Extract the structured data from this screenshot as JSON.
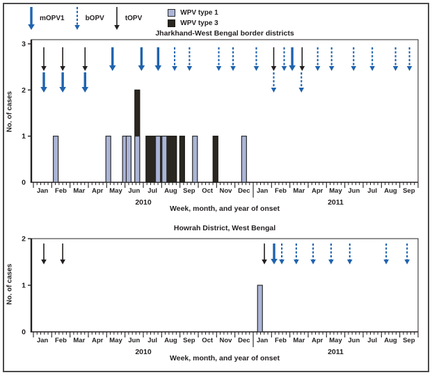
{
  "colors": {
    "ink": "#231F20",
    "figure_border": "#4A4A4A",
    "opv_blue": "#1F63AE",
    "wpv1_fill": "#ABB5D6",
    "wpv1_border": "#3A3A3A",
    "wpv3_fill": "#2A2620"
  },
  "legend": {
    "campaigns": [
      {
        "id": "mOPV1",
        "label": "mOPV1",
        "style": "solid-thick",
        "color": "#1F63AE"
      },
      {
        "id": "bOPV",
        "label": "bOPV",
        "style": "dashed",
        "color": "#1F63AE"
      },
      {
        "id": "tOPV",
        "label": "tOPV",
        "style": "solid-thin",
        "color": "#231F20"
      }
    ],
    "series": [
      {
        "id": "WPV1",
        "label": "WPV type 1",
        "fill": "#ABB5D6",
        "border": "#2B2B2B"
      },
      {
        "id": "WPV3",
        "label": "WPV type 3",
        "fill": "#2A2620",
        "border": "#1A1A16"
      }
    ]
  },
  "chart_data": [
    {
      "type": "bar",
      "title": "Jharkhand-West Bengal border districts",
      "ylabel": "No. of cases",
      "xlabel": "Week, month, and year of onset",
      "ylim": [
        0,
        3
      ],
      "yticks": [
        0,
        1,
        2,
        3
      ],
      "months": [
        "Jan",
        "Feb",
        "Mar",
        "Apr",
        "May",
        "Jun",
        "Jul",
        "Aug",
        "Sep",
        "Oct",
        "Nov",
        "Dec",
        "Jan",
        "Feb",
        "Mar",
        "Apr",
        "May",
        "Jun",
        "Jul",
        "Aug",
        "Sep"
      ],
      "years": [
        {
          "label": "2010",
          "start_month": 0,
          "end_month": 12
        },
        {
          "label": "2011",
          "start_month": 12,
          "end_month": 21
        }
      ],
      "bars": [
        {
          "month_x": 1.22,
          "cases": 1,
          "type": "WPV type 1"
        },
        {
          "month_x": 4.09,
          "cases": 1,
          "type": "WPV type 1"
        },
        {
          "month_x": 5.0,
          "cases": 1,
          "type": "WPV type 1"
        },
        {
          "month_x": 5.2,
          "cases": 1,
          "type": "WPV type 1"
        },
        {
          "month_x": 5.67,
          "cases": 2,
          "type": "WPV type 3"
        },
        {
          "month_x": 5.67,
          "cases": 1,
          "type": "WPV type 1"
        },
        {
          "month_x": 6.98,
          "cases": 1,
          "type": "WPV type 3",
          "width_months": 1.67
        },
        {
          "month_x": 6.8,
          "cases": 1,
          "type": "WPV type 1"
        },
        {
          "month_x": 7.15,
          "cases": 1,
          "type": "WPV type 1"
        },
        {
          "month_x": 8.12,
          "cases": 1,
          "type": "WPV type 3"
        },
        {
          "month_x": 8.82,
          "cases": 1,
          "type": "WPV type 1"
        },
        {
          "month_x": 9.94,
          "cases": 1,
          "type": "WPV type 3"
        },
        {
          "month_x": 11.5,
          "cases": 1,
          "type": "WPV type 1"
        }
      ],
      "campaign_arrows": [
        {
          "month_x": 0.57,
          "vaccine": "tOPV",
          "row": 1
        },
        {
          "month_x": 0.57,
          "vaccine": "mOPV1",
          "row": 2
        },
        {
          "month_x": 1.6,
          "vaccine": "tOPV",
          "row": 1
        },
        {
          "month_x": 1.6,
          "vaccine": "mOPV1",
          "row": 2
        },
        {
          "month_x": 2.82,
          "vaccine": "tOPV",
          "row": 1
        },
        {
          "month_x": 2.82,
          "vaccine": "mOPV1",
          "row": 2
        },
        {
          "month_x": 4.32,
          "vaccine": "mOPV1",
          "row": 1
        },
        {
          "month_x": 5.9,
          "vaccine": "mOPV1",
          "row": 1
        },
        {
          "month_x": 6.81,
          "vaccine": "mOPV1",
          "row": 1
        },
        {
          "month_x": 7.71,
          "vaccine": "bOPV",
          "row": 1
        },
        {
          "month_x": 8.52,
          "vaccine": "bOPV",
          "row": 1
        },
        {
          "month_x": 10.12,
          "vaccine": "bOPV",
          "row": 1
        },
        {
          "month_x": 10.9,
          "vaccine": "bOPV",
          "row": 1
        },
        {
          "month_x": 12.17,
          "vaccine": "bOPV",
          "row": 1
        },
        {
          "month_x": 13.12,
          "vaccine": "tOPV",
          "row": 1
        },
        {
          "month_x": 13.12,
          "vaccine": "bOPV",
          "row": 2
        },
        {
          "month_x": 13.69,
          "vaccine": "bOPV",
          "row": 1
        },
        {
          "month_x": 14.13,
          "vaccine": "mOPV1",
          "row": 1
        },
        {
          "month_x": 14.67,
          "vaccine": "tOPV",
          "row": 1
        },
        {
          "month_x": 14.63,
          "vaccine": "bOPV",
          "row": 2
        },
        {
          "month_x": 15.52,
          "vaccine": "bOPV",
          "row": 1
        },
        {
          "month_x": 16.28,
          "vaccine": "bOPV",
          "row": 1
        },
        {
          "month_x": 17.48,
          "vaccine": "bOPV",
          "row": 1
        },
        {
          "month_x": 18.5,
          "vaccine": "bOPV",
          "row": 1
        },
        {
          "month_x": 19.77,
          "vaccine": "bOPV",
          "row": 1
        },
        {
          "month_x": 20.53,
          "vaccine": "bOPV",
          "row": 1
        }
      ]
    },
    {
      "type": "bar",
      "title": "Howrah District, West Bengal",
      "ylabel": "No. of cases",
      "xlabel": "Week, month, and year of onset",
      "ylim": [
        0,
        2
      ],
      "yticks": [
        0,
        1,
        2
      ],
      "months": [
        "Jan",
        "Feb",
        "Mar",
        "Apr",
        "May",
        "Jun",
        "Jul",
        "Aug",
        "Sep",
        "Oct",
        "Nov",
        "Dec",
        "Jan",
        "Feb",
        "Mar",
        "Apr",
        "May",
        "Jun",
        "Jul",
        "Aug",
        "Sep"
      ],
      "years": [
        {
          "label": "2010",
          "start_month": 0,
          "end_month": 12
        },
        {
          "label": "2011",
          "start_month": 12,
          "end_month": 21
        }
      ],
      "bars": [
        {
          "month_x": 12.37,
          "cases": 1,
          "type": "WPV type 1"
        }
      ],
      "campaign_arrows": [
        {
          "month_x": 0.57,
          "vaccine": "tOPV",
          "row": 1
        },
        {
          "month_x": 1.6,
          "vaccine": "tOPV",
          "row": 1
        },
        {
          "month_x": 12.61,
          "vaccine": "tOPV",
          "row": 1
        },
        {
          "month_x": 13.14,
          "vaccine": "mOPV1",
          "row": 1
        },
        {
          "month_x": 13.56,
          "vaccine": "bOPV",
          "row": 1
        },
        {
          "month_x": 14.35,
          "vaccine": "bOPV",
          "row": 1
        },
        {
          "month_x": 15.27,
          "vaccine": "bOPV",
          "row": 1
        },
        {
          "month_x": 16.25,
          "vaccine": "bOPV",
          "row": 1
        },
        {
          "month_x": 17.27,
          "vaccine": "bOPV",
          "row": 1
        },
        {
          "month_x": 19.26,
          "vaccine": "bOPV",
          "row": 1
        },
        {
          "month_x": 20.4,
          "vaccine": "bOPV",
          "row": 1
        }
      ]
    }
  ]
}
